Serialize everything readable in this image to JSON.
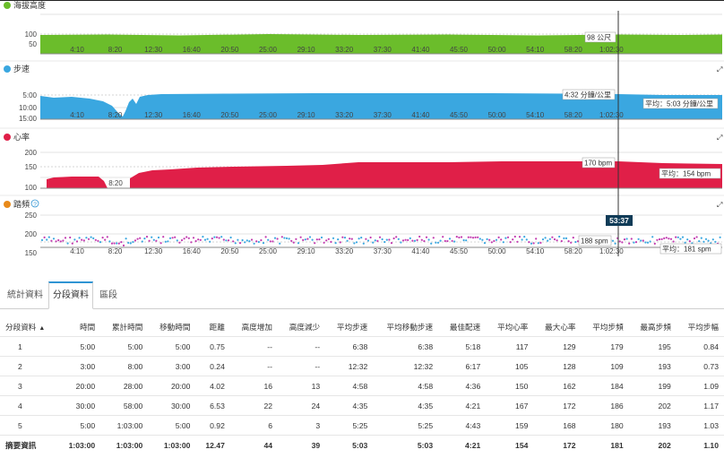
{
  "colors": {
    "elevation": "#6bbd2b",
    "pace": "#3aa7e0",
    "heartrate": "#e01f48",
    "cadence": "#e88a1a",
    "tab_accent": "#2f94d3",
    "cadence_dot_a": "#3aa7e0",
    "cadence_dot_b": "#c23bb0"
  },
  "time_ticks": [
    "4:10",
    "8:20",
    "12:30",
    "16:40",
    "20:50",
    "25:00",
    "29:10",
    "33:20",
    "37:30",
    "41:40",
    "45:50",
    "50:00",
    "54:10",
    "58:20",
    "1:02:30"
  ],
  "charts": {
    "elevation": {
      "title": "海拔高度",
      "icon": "green-dot-icon",
      "y_ticks": [
        "100",
        "50"
      ],
      "tooltip": "98 公尺"
    },
    "pace": {
      "title": "步速",
      "icon": "blue-dot-icon",
      "y_ticks": [
        "5:00",
        "10:00",
        "15:00"
      ],
      "tooltip": "4:32 分鐘/公里",
      "avg_label": "平均：5:03 分鐘/公里"
    },
    "heartrate": {
      "title": "心率",
      "icon": "red-dot-icon",
      "y_ticks": [
        "200",
        "150",
        "100"
      ],
      "tooltip": "170 bpm",
      "avg_label": "平均：154 bpm"
    },
    "cadence": {
      "title": "踏頻",
      "icon": "orange-dot-icon",
      "help_icon": "?",
      "y_ticks": [
        "250",
        "200",
        "150"
      ],
      "tooltip": "188 spm",
      "avg_label": "平均：181 spm",
      "cursor_time": "53:37"
    }
  },
  "tabs": [
    {
      "label": "統計資料",
      "active": false
    },
    {
      "label": "分段資料",
      "active": true
    },
    {
      "label": "區段",
      "active": false
    }
  ],
  "splits": {
    "headers": [
      "分段資料",
      "時間",
      "累計時間",
      "移動時間",
      "距離",
      "高度增加",
      "高度減少",
      "平均步速",
      "平均移動步速",
      "最佳配速",
      "平均心率",
      "最大心率",
      "平均步頻",
      "最高步頻",
      "平均步幅"
    ],
    "sort_indicator": "▲",
    "rows": [
      [
        "1",
        "5:00",
        "5:00",
        "5:00",
        "0.75",
        "--",
        "--",
        "6:38",
        "6:38",
        "5:18",
        "117",
        "129",
        "179",
        "195",
        "0.84"
      ],
      [
        "2",
        "3:00",
        "8:00",
        "3:00",
        "0.24",
        "--",
        "--",
        "12:32",
        "12:32",
        "6:17",
        "105",
        "128",
        "109",
        "193",
        "0.73"
      ],
      [
        "3",
        "20:00",
        "28:00",
        "20:00",
        "4.02",
        "16",
        "13",
        "4:58",
        "4:58",
        "4:36",
        "150",
        "162",
        "184",
        "199",
        "1.09"
      ],
      [
        "4",
        "30:00",
        "58:00",
        "30:00",
        "6.53",
        "22",
        "24",
        "4:35",
        "4:35",
        "4:21",
        "167",
        "172",
        "186",
        "202",
        "1.17"
      ],
      [
        "5",
        "5:00",
        "1:03:00",
        "5:00",
        "0.92",
        "6",
        "3",
        "5:25",
        "5:25",
        "4:43",
        "159",
        "168",
        "180",
        "193",
        "1.03"
      ]
    ],
    "summary": [
      "摘要資訊",
      "1:03:00",
      "1:03:00",
      "1:03:00",
      "12.47",
      "44",
      "39",
      "5:03",
      "5:03",
      "4:21",
      "154",
      "172",
      "181",
      "202",
      "1.10"
    ]
  }
}
